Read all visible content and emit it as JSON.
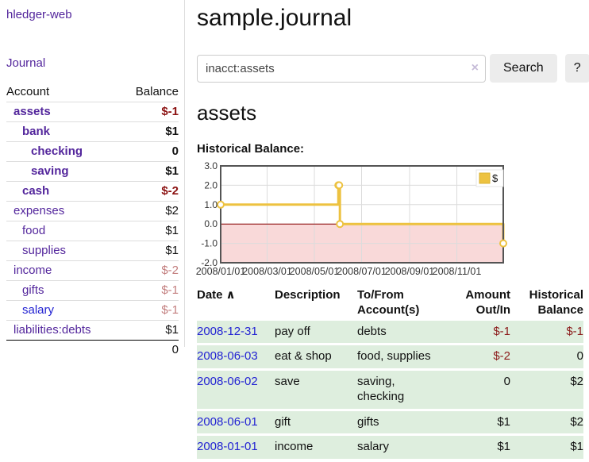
{
  "sidebar": {
    "brand": "hledger-web",
    "journal_link": "Journal",
    "accounts": {
      "headers": {
        "account": "Account",
        "balance": "Balance"
      },
      "rows": [
        {
          "name": "assets",
          "depth": 0,
          "bold": true,
          "negative": true,
          "balance": "$-1"
        },
        {
          "name": "bank",
          "depth": 1,
          "bold": true,
          "negative": false,
          "balance": "$1"
        },
        {
          "name": "checking",
          "depth": 2,
          "bold": true,
          "negative": false,
          "balance": "0"
        },
        {
          "name": "saving",
          "depth": 2,
          "bold": true,
          "negative": false,
          "balance": "$1"
        },
        {
          "name": "cash",
          "depth": 1,
          "bold": true,
          "negative": true,
          "balance": "$-2"
        },
        {
          "name": "expenses",
          "depth": 0,
          "bold": false,
          "negative": false,
          "balance": "$2"
        },
        {
          "name": "food",
          "depth": 1,
          "bold": false,
          "negative": false,
          "balance": "$1"
        },
        {
          "name": "supplies",
          "depth": 1,
          "bold": false,
          "negative": false,
          "balance": "$1"
        },
        {
          "name": "income",
          "depth": 0,
          "bold": false,
          "negative": true,
          "balance": "$-2"
        },
        {
          "name": "gifts",
          "depth": 1,
          "bold": false,
          "negative": true,
          "balance": "$-1"
        },
        {
          "name": "salary",
          "depth": 1,
          "bold": false,
          "negative": true,
          "balance": "$-1",
          "blue": true
        },
        {
          "name": "liabilities:debts",
          "depth": 0,
          "bold": false,
          "negative": false,
          "balance": "$1"
        }
      ],
      "total": "0"
    }
  },
  "header": {
    "title": "sample.journal"
  },
  "search": {
    "value": "inacct:assets",
    "clear_icon": "×",
    "button_label": "Search",
    "help_label": "?"
  },
  "account_page": {
    "heading": "assets",
    "chart_label": "Historical Balance:"
  },
  "chart_data": {
    "type": "line",
    "style": "step",
    "title": "Historical Balance:",
    "series": [
      {
        "name": "$",
        "color": "#EDC240",
        "point_border": "#d9b12f",
        "points": [
          [
            "2008/01/01",
            1
          ],
          [
            "2008/06/01",
            2
          ],
          [
            "2008/06/02",
            2
          ],
          [
            "2008/06/03",
            0
          ],
          [
            "2008/12/31",
            -1
          ]
        ]
      }
    ],
    "xlim": [
      "2008/01/01",
      "2008/12/31"
    ],
    "ylim": [
      -2,
      3
    ],
    "x_ticks": [
      "2008/01/01",
      "2008/03/01",
      "2008/05/01",
      "2008/07/01",
      "2008/09/01",
      "2008/11/01"
    ],
    "y_ticks": [
      3.0,
      2.0,
      1.0,
      0.0,
      -1.0,
      -2.0
    ],
    "grid": true,
    "legend_position": "top-right",
    "colors": {
      "negative_fill": "#f9d9d9",
      "zero_line": "#8b0000",
      "grid": "#dcdcdc",
      "border": "#545454",
      "tick_text": "#333333"
    }
  },
  "register": {
    "headers": {
      "date": "Date",
      "sort_icon": "∧",
      "description": "Description",
      "to_from": "To/From\nAccount(s)",
      "amount": "Amount\nOut/In",
      "balance": "Historical\nBalance"
    },
    "rows": [
      {
        "date": "2008-12-31",
        "description": "pay off",
        "to_from": "debts",
        "amount": "$-1",
        "balance": "$-1"
      },
      {
        "date": "2008-06-03",
        "description": "eat & shop",
        "to_from": "food, supplies",
        "amount": "$-2",
        "balance": "0"
      },
      {
        "date": "2008-06-02",
        "description": "save",
        "to_from": "saving,\nchecking",
        "amount": "0",
        "balance": "$2"
      },
      {
        "date": "2008-06-01",
        "description": "gift",
        "to_from": "gifts",
        "amount": "$1",
        "balance": "$2"
      },
      {
        "date": "2008-01-01",
        "description": "income",
        "to_from": "salary",
        "amount": "$1",
        "balance": "$1"
      }
    ]
  }
}
